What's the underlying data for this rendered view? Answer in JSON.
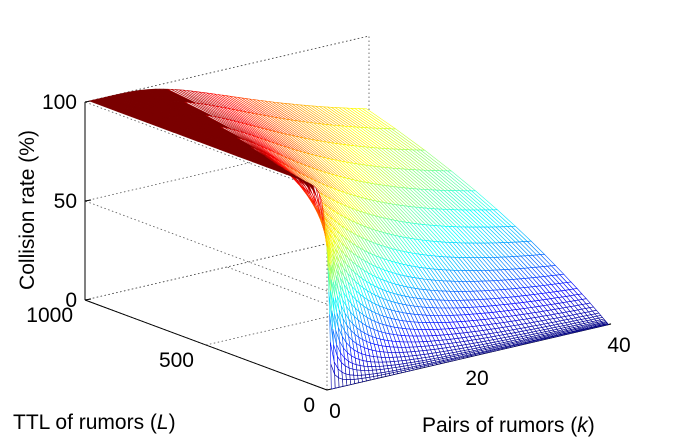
{
  "chart_data": {
    "type": "surface",
    "zlabel": "Collision rate (%)",
    "xlabel_prefix": "Pairs of rumors (",
    "xlabel_var": "k",
    "xlabel_suffix": ")",
    "ylabel_prefix": "TTL of rumors (",
    "ylabel_var": "L",
    "ylabel_suffix": ")",
    "x_ticks": [
      "0",
      "20",
      "40"
    ],
    "y_ticks": [
      "0",
      "500",
      "1000"
    ],
    "z_ticks": [
      "0",
      "50",
      "100"
    ],
    "xlim": [
      0,
      40
    ],
    "ylim": [
      0,
      1000
    ],
    "zlim": [
      0,
      100
    ],
    "colormap": "jet",
    "grid": true,
    "surface_samples": {
      "k": [
        1,
        5,
        10,
        20,
        40
      ],
      "L": [
        0,
        25,
        50,
        100,
        200,
        500,
        1000
      ],
      "rate": [
        [
          0,
          63,
          86,
          98,
          100,
          100,
          100
        ],
        [
          0,
          20,
          37,
          60,
          84,
          99,
          100
        ],
        [
          0,
          11,
          21,
          37,
          61,
          91,
          99
        ],
        [
          0,
          6,
          11,
          21,
          37,
          70,
          91
        ],
        [
          0,
          3,
          6,
          11,
          21,
          45,
          70
        ]
      ]
    }
  }
}
